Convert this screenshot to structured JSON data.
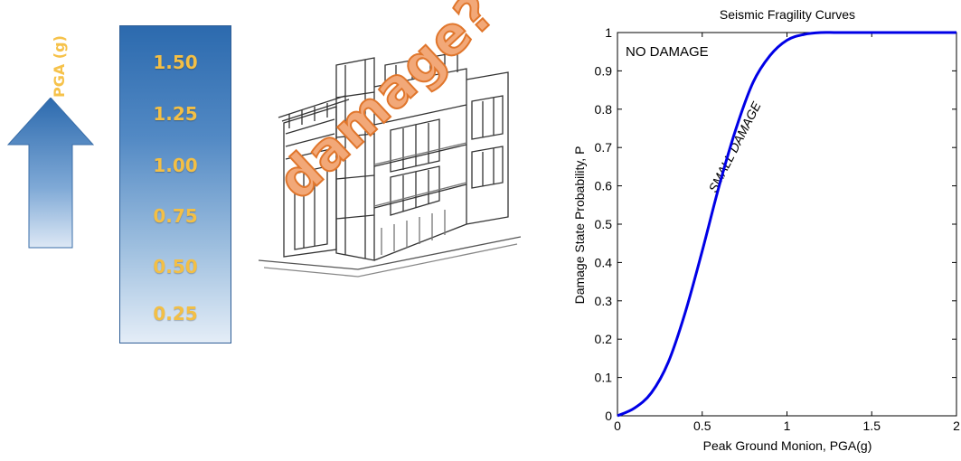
{
  "left_panel": {
    "arrow_label": "PGA (g)",
    "pga_values": [
      "1.50",
      "1.25",
      "1.00",
      "0.75",
      "0.50",
      "0.25"
    ],
    "damage_text": "damage?"
  },
  "colors": {
    "arrow_fill": "#2e6db0",
    "scale_top": "#2c6aae",
    "scale_bottom": "#e4edf7",
    "gold_text": "#f3bf45",
    "damage_orange": "#e0762c",
    "curve_blue": "#0000e6"
  },
  "chart_data": {
    "type": "line",
    "title": "Seismic Fragility Curves",
    "xlabel": "Peak Ground Monion, PGA(g)",
    "ylabel": "Damage State Probability, P",
    "xlim": [
      0,
      2
    ],
    "ylim": [
      0,
      1
    ],
    "xticks": [
      "0",
      "0.5",
      "1",
      "1.5",
      "2"
    ],
    "yticks": [
      "0",
      "0.1",
      "0.2",
      "0.3",
      "0.4",
      "0.5",
      "0.6",
      "0.7",
      "0.8",
      "0.9",
      "1"
    ],
    "annotations": [
      "NO DAMAGE",
      "SMALL DAMAGE"
    ],
    "grid": false,
    "series": [
      {
        "x": [
          0.0,
          0.1,
          0.2,
          0.3,
          0.4,
          0.5,
          0.6,
          0.7,
          0.8,
          0.9,
          1.0,
          1.1,
          1.2,
          1.3,
          1.5,
          2.0
        ],
        "values": [
          0.0,
          0.02,
          0.06,
          0.14,
          0.27,
          0.43,
          0.6,
          0.75,
          0.87,
          0.94,
          0.98,
          0.995,
          1.0,
          1.0,
          1.0,
          1.0
        ]
      }
    ]
  }
}
